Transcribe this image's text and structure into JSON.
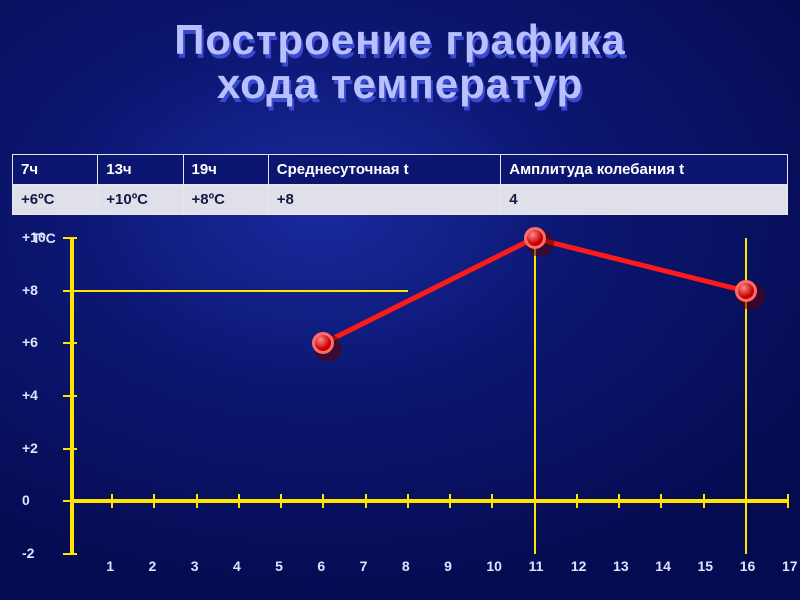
{
  "title": {
    "line1": "Построение графика",
    "line2": "хода температур"
  },
  "colors": {
    "title_main": "#b8c0ff",
    "title_shadow": "#3a4ad0",
    "axis": "#ffe400",
    "grid": "#ffe400",
    "text": "#dfe3ff",
    "series_line": "#ff1a1a",
    "point_fill": "#c80000",
    "point_border": "#ff6a6a",
    "point_shadow": "#5a0000",
    "table_header_bg": "#0b1670",
    "table_header_text": "#ffffff",
    "table_body_bg": "#e0e0ea",
    "table_body_text": "#171748",
    "table_border": "#e6e6ee"
  },
  "table": {
    "headers": [
      "7ч",
      "13ч",
      "19ч",
      "Среднесуточная t",
      "Амплитуда колебания t"
    ],
    "row": [
      "+6ºC",
      "+10ºC",
      "+8ºC",
      "+8",
      "4"
    ],
    "col_widths_pct": [
      11,
      11,
      11,
      30,
      37
    ]
  },
  "chart": {
    "type": "line",
    "y_axis_title": "TºC",
    "ylim": [
      -2,
      10
    ],
    "y_ticks": [
      10,
      8,
      6,
      4,
      2,
      0,
      -2
    ],
    "y_tick_labels": [
      "+10",
      "+8",
      "+6",
      "+4",
      "+2",
      "0",
      "-2"
    ],
    "xlim": [
      0,
      17
    ],
    "x_ticks": [
      1,
      2,
      3,
      4,
      5,
      6,
      7,
      8,
      9,
      10,
      11,
      12,
      13,
      14,
      15,
      16,
      17
    ],
    "x_tick_labels": [
      "1",
      "2",
      "3",
      "4",
      "5",
      "6",
      "7",
      "8",
      "9",
      "10",
      "11",
      "12",
      "13",
      "14",
      "15",
      "16",
      "17"
    ],
    "x_zero_at_y": 0,
    "grid_v_at_x": [
      11,
      16
    ],
    "grid_h_at_y": [
      8
    ],
    "grid_h_span": {
      "x_from": 0,
      "x_to": 8
    },
    "series": {
      "x": [
        6,
        11,
        16
      ],
      "y": [
        6,
        10,
        8
      ]
    },
    "line_width": 5,
    "point_radius": 11,
    "point_border_width": 3,
    "axis_width": 4,
    "tick_width": 2,
    "label_fontsize": 14
  }
}
